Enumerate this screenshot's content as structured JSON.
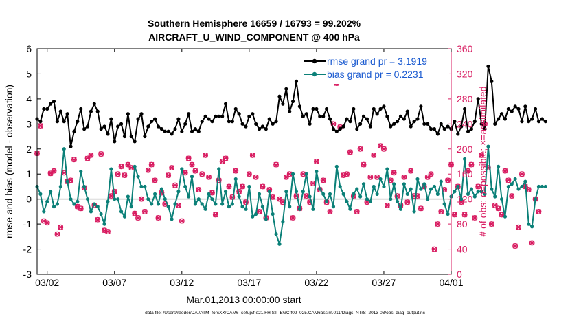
{
  "chart_data": {
    "type": "line",
    "title": "Southern Hemisphere 16659 / 16793 = 99.202%",
    "subtitle": "AIRCRAFT_U_WIND_COMPONENT @ 400 hPa",
    "xlabel": "Mar.01,2013 00:00:00 start",
    "ylabel_left": "rmse and bias (model - observation)",
    "ylabel_right": "# of obs: o=possible; ×=assimilated",
    "ylim_left": [
      -3,
      6
    ],
    "ylim_right": [
      0,
      360
    ],
    "yticks_left": [
      -3,
      -2,
      -1,
      0,
      1,
      2,
      3,
      4,
      5,
      6
    ],
    "yticks_right": [
      0,
      40,
      80,
      120,
      160,
      200,
      240,
      280,
      320,
      360
    ],
    "xlim_days": [
      0.25,
      31.0
    ],
    "xticks": [
      {
        "day": 1,
        "label": "03/02"
      },
      {
        "day": 6,
        "label": "03/07"
      },
      {
        "day": 11,
        "label": "03/12"
      },
      {
        "day": 16,
        "label": "03/17"
      },
      {
        "day": 21,
        "label": "03/22"
      },
      {
        "day": 26,
        "label": "03/27"
      },
      {
        "day": 31,
        "label": "04/01"
      }
    ],
    "time_step_days": 0.25,
    "time_start_day": 0.25,
    "series": [
      {
        "name": "rmse grand pr = 3.1919",
        "color": "#000000",
        "marker": "dot",
        "values": [
          3.2,
          3.1,
          3.6,
          3.6,
          3.8,
          3.9,
          3.1,
          3.5,
          3.1,
          3.4,
          2.1,
          2.7,
          3.1,
          3.6,
          2.8,
          2.9,
          3.5,
          3.8,
          3.5,
          2.8,
          2.9,
          2.6,
          3.2,
          2.3,
          2.9,
          3.0,
          2.5,
          3.4,
          2.5,
          2.3,
          3.2,
          3.4,
          2.5,
          2.9,
          3.1,
          3.2,
          2.9,
          2.8,
          2.7,
          2.7,
          2.6,
          2.8,
          3.2,
          2.7,
          3.0,
          3.4,
          2.7,
          2.8,
          2.7,
          3.1,
          3.3,
          3.2,
          3.1,
          3.3,
          3.3,
          3.3,
          3.8,
          3.1,
          3.1,
          3.6,
          3.4,
          3.0,
          2.9,
          3.3,
          3.4,
          3.0,
          2.8,
          2.9,
          2.8,
          3.2,
          3.0,
          3.1,
          4.1,
          3.8,
          4.4,
          3.5,
          3.9,
          4.7,
          3.7,
          3.3,
          3.4,
          3.0,
          3.6,
          3.6,
          3.3,
          3.3,
          3.6,
          3.2,
          2.8,
          2.7,
          2.8,
          2.9,
          3.2,
          3.1,
          3.6,
          2.8,
          3.0,
          3.3,
          3.2,
          2.9,
          3.6,
          3.4,
          3.6,
          3.7,
          3.3,
          2.9,
          3.0,
          3.1,
          3.3,
          3.2,
          3.5,
          2.9,
          3.1,
          3.2,
          3.7,
          3.0,
          3.0,
          2.8,
          2.8,
          2.6,
          3.0,
          2.8,
          2.9,
          2.8,
          3.1,
          2.6,
          2.9,
          3.6,
          2.7,
          2.8,
          3.1,
          4.0,
          3.0,
          2.8,
          5.3,
          4.7,
          3.0,
          3.2,
          3.4,
          3.2,
          3.6,
          3.5,
          3.7,
          3.6,
          3.1,
          3.7,
          3.1,
          3.2,
          3.6,
          3.1,
          3.2,
          3.1
        ]
      },
      {
        "name": "bias grand pr = 0.2231",
        "color": "#0b8078",
        "marker": "dot",
        "values": [
          0.5,
          0.2,
          -0.5,
          -0.1,
          0.3,
          -0.3,
          -0.2,
          0.5,
          2.0,
          0.7,
          0.0,
          -0.2,
          -0.1,
          1.1,
          0.5,
          0.0,
          -0.5,
          -0.2,
          -0.3,
          -0.6,
          -1.0,
          -0.1,
          1.2,
          0.0,
          0.0,
          -0.5,
          -0.7,
          0.1,
          -0.3,
          1.3,
          0.9,
          0.5,
          0.5,
          0.0,
          -0.2,
          0.2,
          -0.2,
          0.4,
          0.0,
          -0.3,
          -0.8,
          -0.2,
          0.3,
          1.2,
          0.5,
          0.1,
          0.9,
          -0.2,
          0.0,
          -0.2,
          -0.4,
          0.2,
          0.0,
          -0.2,
          1.2,
          -0.2,
          0.3,
          -0.3,
          -0.2,
          0.8,
          0.1,
          -0.3,
          -0.4,
          0.5,
          -0.7,
          -0.6,
          0.2,
          -0.3,
          -0.8,
          0.3,
          -0.6,
          -1.4,
          -1.8,
          -0.9,
          0.3,
          -0.3,
          1.0,
          0.3,
          -0.4,
          0.3,
          1.0,
          0.1,
          -0.4,
          1.1,
          0.4,
          0.2,
          -0.1,
          0.2,
          -0.3,
          1.3,
          0.5,
          0.2,
          -0.1,
          -0.4,
          0.2,
          0.4,
          0.1,
          0.6,
          0.0,
          -0.1,
          0.5,
          0.2,
          0.8,
          0.5,
          1.2,
          0.0,
          0.6,
          -0.1,
          -0.4,
          0.6,
          0.2,
          0.4,
          -0.5,
          0.8,
          0.4,
          0.6,
          0.0,
          0.4,
          0.5,
          0.2,
          0.7,
          -0.2,
          -0.6,
          0.1,
          0.3,
          0.5,
          0.0,
          1.6,
          0.2,
          0.4,
          0.1,
          0.3,
          0.3,
          0.2,
          2.1,
          0.4,
          0.1,
          1.3,
          0.0,
          -0.7,
          0.5,
          0.6,
          0.8,
          0.4,
          0.5,
          0.7,
          -1.0,
          -1.1,
          0.0,
          0.5,
          0.5,
          0.5
        ]
      },
      {
        "name": "obs possible",
        "color": "#d81b60",
        "marker": "circle",
        "axis": "right",
        "values": [
          193,
          237,
          85,
          82,
          161,
          165,
          64,
          75,
          162,
          148,
          150,
          183,
          108,
          105,
          138,
          185,
          190,
          110,
          87,
          192,
          70,
          68,
          125,
          132,
          160,
          172,
          158,
          175,
          170,
          97,
          90,
          120,
          100,
          166,
          175,
          150,
          90,
          130,
          112,
          158,
          170,
          142,
          110,
          85,
          162,
          185,
          175,
          165,
          135,
          160,
          190,
          155,
          130,
          95,
          150,
          180,
          185,
          140,
          123,
          165,
          132,
          140,
          115,
          160,
          190,
          155,
          100,
          140,
          90,
          135,
          123,
          175,
          120,
          115,
          155,
          160,
          90,
          125,
          105,
          160,
          125,
          115,
          145,
          180,
          135,
          150,
          115,
          100,
          240,
          305,
          235,
          158,
          160,
          195,
          125,
          100,
          200,
          175,
          115,
          155,
          190,
          155,
          205,
          200,
          110,
          150,
          162,
          125,
          110,
          155,
          115,
          165,
          125,
          125,
          105,
          140,
          155,
          160,
          40,
          80,
          100,
          135,
          150,
          175,
          95,
          140,
          115,
          95,
          165,
          175,
          90,
          140,
          190,
          240,
          170,
          80,
          110,
          105,
          95,
          165,
          150,
          125,
          45,
          75,
          160,
          140,
          135,
          50,
          120,
          100
        ]
      },
      {
        "name": "obs assimilated",
        "color": "#d81b60",
        "marker": "x",
        "axis": "right",
        "values": [
          193,
          237,
          85,
          82,
          161,
          165,
          64,
          75,
          162,
          148,
          150,
          183,
          108,
          105,
          138,
          185,
          190,
          110,
          87,
          192,
          70,
          68,
          125,
          132,
          160,
          172,
          158,
          175,
          170,
          97,
          90,
          120,
          100,
          166,
          175,
          150,
          90,
          130,
          112,
          158,
          170,
          142,
          110,
          85,
          162,
          185,
          175,
          165,
          135,
          160,
          190,
          155,
          130,
          95,
          150,
          180,
          185,
          140,
          123,
          165,
          132,
          140,
          115,
          160,
          190,
          155,
          100,
          140,
          90,
          135,
          123,
          175,
          120,
          115,
          155,
          160,
          90,
          125,
          105,
          160,
          125,
          115,
          145,
          180,
          135,
          150,
          115,
          100,
          240,
          305,
          235,
          158,
          160,
          195,
          125,
          100,
          200,
          175,
          115,
          155,
          190,
          155,
          205,
          200,
          110,
          150,
          162,
          125,
          110,
          155,
          115,
          165,
          125,
          125,
          105,
          140,
          155,
          160,
          40,
          80,
          100,
          135,
          150,
          175,
          95,
          140,
          115,
          95,
          165,
          175,
          90,
          140,
          190,
          240,
          170,
          80,
          110,
          105,
          95,
          165,
          150,
          125,
          45,
          75,
          160,
          140,
          135,
          50,
          120,
          100
        ]
      }
    ],
    "legend": [
      "rmse grand pr = 3.1919",
      "bias grand pr = 0.2231"
    ],
    "legend_position": "top-right",
    "legend_text_color": "#1a5ad0",
    "zero_line_color": "#b0b0b0",
    "right_axis_color": "#d81b60"
  },
  "footer": "data file: /Users/raeder/DAI/ATM_forcXX/CAM6_setup/f.e21.FHIST_BGC.f09_025.CAM6assim.011/Diags_NTrS_2013-03/obs_diag_output.nc"
}
